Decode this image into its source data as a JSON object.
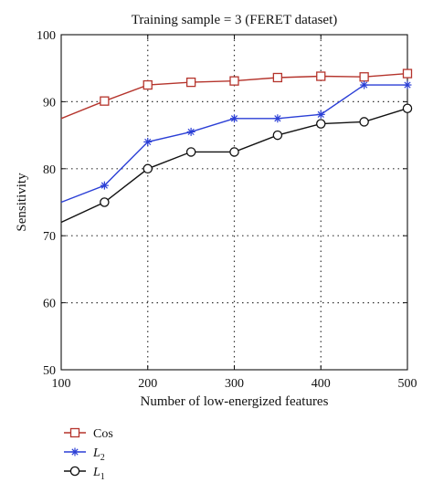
{
  "chart_data": {
    "type": "line",
    "title": "Training sample = 3 (FERET dataset)",
    "xlabel": "Number of low-energized features",
    "ylabel": "Sensitivity",
    "xlim": [
      100,
      500
    ],
    "ylim": [
      50,
      100
    ],
    "xticks": [
      100,
      200,
      300,
      400,
      500
    ],
    "yticks": [
      50,
      60,
      70,
      80,
      90,
      100
    ],
    "grid": true,
    "legend": "below-left",
    "series": [
      {
        "name": "Cos",
        "marker": "square",
        "color": "#b5342c",
        "x": [
          100,
          150,
          200,
          250,
          300,
          350,
          400,
          450,
          500
        ],
        "y": [
          87.5,
          90.1,
          92.5,
          92.9,
          93.1,
          93.6,
          93.8,
          93.7,
          94.2
        ]
      },
      {
        "name": "L",
        "name_subscript": "2",
        "marker": "asterisk",
        "color": "#2b3fd6",
        "x": [
          100,
          150,
          200,
          250,
          300,
          350,
          400,
          450,
          500
        ],
        "y": [
          75.0,
          77.5,
          84.0,
          85.5,
          87.5,
          87.5,
          88.1,
          92.5,
          92.5
        ]
      },
      {
        "name": "L",
        "name_subscript": "1",
        "marker": "circle",
        "color": "#111111",
        "x": [
          100,
          150,
          200,
          250,
          300,
          350,
          400,
          450,
          500
        ],
        "y": [
          72.0,
          75.0,
          80.0,
          82.5,
          82.5,
          85.0,
          86.7,
          87.0,
          89.0
        ]
      }
    ]
  }
}
